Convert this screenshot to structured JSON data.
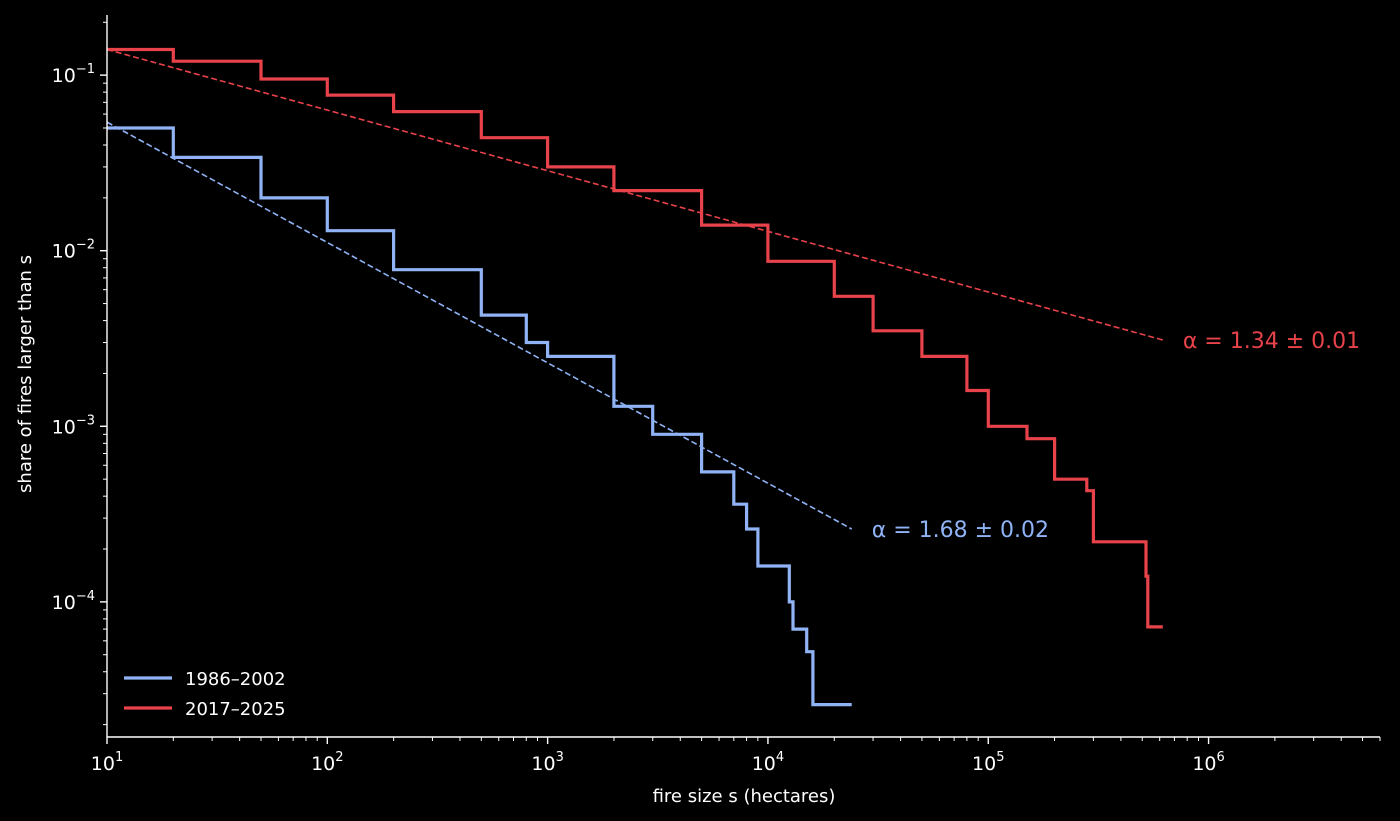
{
  "chart_data": {
    "type": "line",
    "title": "",
    "xlabel": "fire size s (hectares)",
    "ylabel": "share of fires larger than s",
    "x_scale": "log",
    "y_scale": "log",
    "xlim": [
      10,
      6000000
    ],
    "ylim": [
      1.7e-05,
      0.22
    ],
    "grid": false,
    "legend_placement": "lower-left",
    "x_ticks": [
      {
        "value": 10,
        "base": "10",
        "exp": "1"
      },
      {
        "value": 100,
        "base": "10",
        "exp": "2"
      },
      {
        "value": 1000,
        "base": "10",
        "exp": "3"
      },
      {
        "value": 10000,
        "base": "10",
        "exp": "4"
      },
      {
        "value": 100000,
        "base": "10",
        "exp": "5"
      },
      {
        "value": 1000000,
        "base": "10",
        "exp": "6"
      }
    ],
    "y_ticks": [
      {
        "value": 0.0001,
        "base": "10",
        "exp": "−4"
      },
      {
        "value": 0.001,
        "base": "10",
        "exp": "−3"
      },
      {
        "value": 0.01,
        "base": "10",
        "exp": "−2"
      },
      {
        "value": 0.1,
        "base": "10",
        "exp": "−1"
      }
    ],
    "series": [
      {
        "name": "1986–2002",
        "color": "#8fb3f5",
        "points": [
          [
            10,
            0.05
          ],
          [
            20,
            0.034
          ],
          [
            50,
            0.02
          ],
          [
            100,
            0.013
          ],
          [
            200,
            0.0078
          ],
          [
            500,
            0.0043
          ],
          [
            800,
            0.003
          ],
          [
            1000,
            0.0025
          ],
          [
            2000,
            0.0013
          ],
          [
            3000,
            0.0009
          ],
          [
            5000,
            0.00055
          ],
          [
            7000,
            0.00036
          ],
          [
            8000,
            0.00026
          ],
          [
            9000,
            0.00016
          ],
          [
            12000,
            0.00016
          ],
          [
            12500,
            0.0001
          ],
          [
            13000,
            7e-05
          ],
          [
            15000,
            5.2e-05
          ],
          [
            16000,
            2.6e-05
          ],
          [
            24000,
            2.6e-05
          ]
        ],
        "fit": {
          "x": [
            10,
            24000
          ],
          "y": [
            0.054,
            0.00026
          ],
          "label": "α = 1.68 ± 0.02"
        }
      },
      {
        "name": "2017–2025",
        "color": "#e8424a",
        "points": [
          [
            10,
            0.14
          ],
          [
            20,
            0.12
          ],
          [
            50,
            0.095
          ],
          [
            100,
            0.077
          ],
          [
            200,
            0.062
          ],
          [
            500,
            0.044
          ],
          [
            1000,
            0.03
          ],
          [
            2000,
            0.022
          ],
          [
            5000,
            0.014
          ],
          [
            10000,
            0.0087
          ],
          [
            20000,
            0.0055
          ],
          [
            30000,
            0.0035
          ],
          [
            50000,
            0.0025
          ],
          [
            80000,
            0.0016
          ],
          [
            100000,
            0.001
          ],
          [
            150000,
            0.00085
          ],
          [
            200000,
            0.0005
          ],
          [
            280000,
            0.00043
          ],
          [
            300000,
            0.00022
          ],
          [
            500000,
            0.00022
          ],
          [
            520000,
            0.00014
          ],
          [
            530000,
            7.2e-05
          ],
          [
            620000,
            7.2e-05
          ]
        ],
        "fit": {
          "x": [
            10,
            620000
          ],
          "y": [
            0.14,
            0.0031
          ],
          "label": "α = 1.34 ± 0.01"
        }
      }
    ]
  }
}
